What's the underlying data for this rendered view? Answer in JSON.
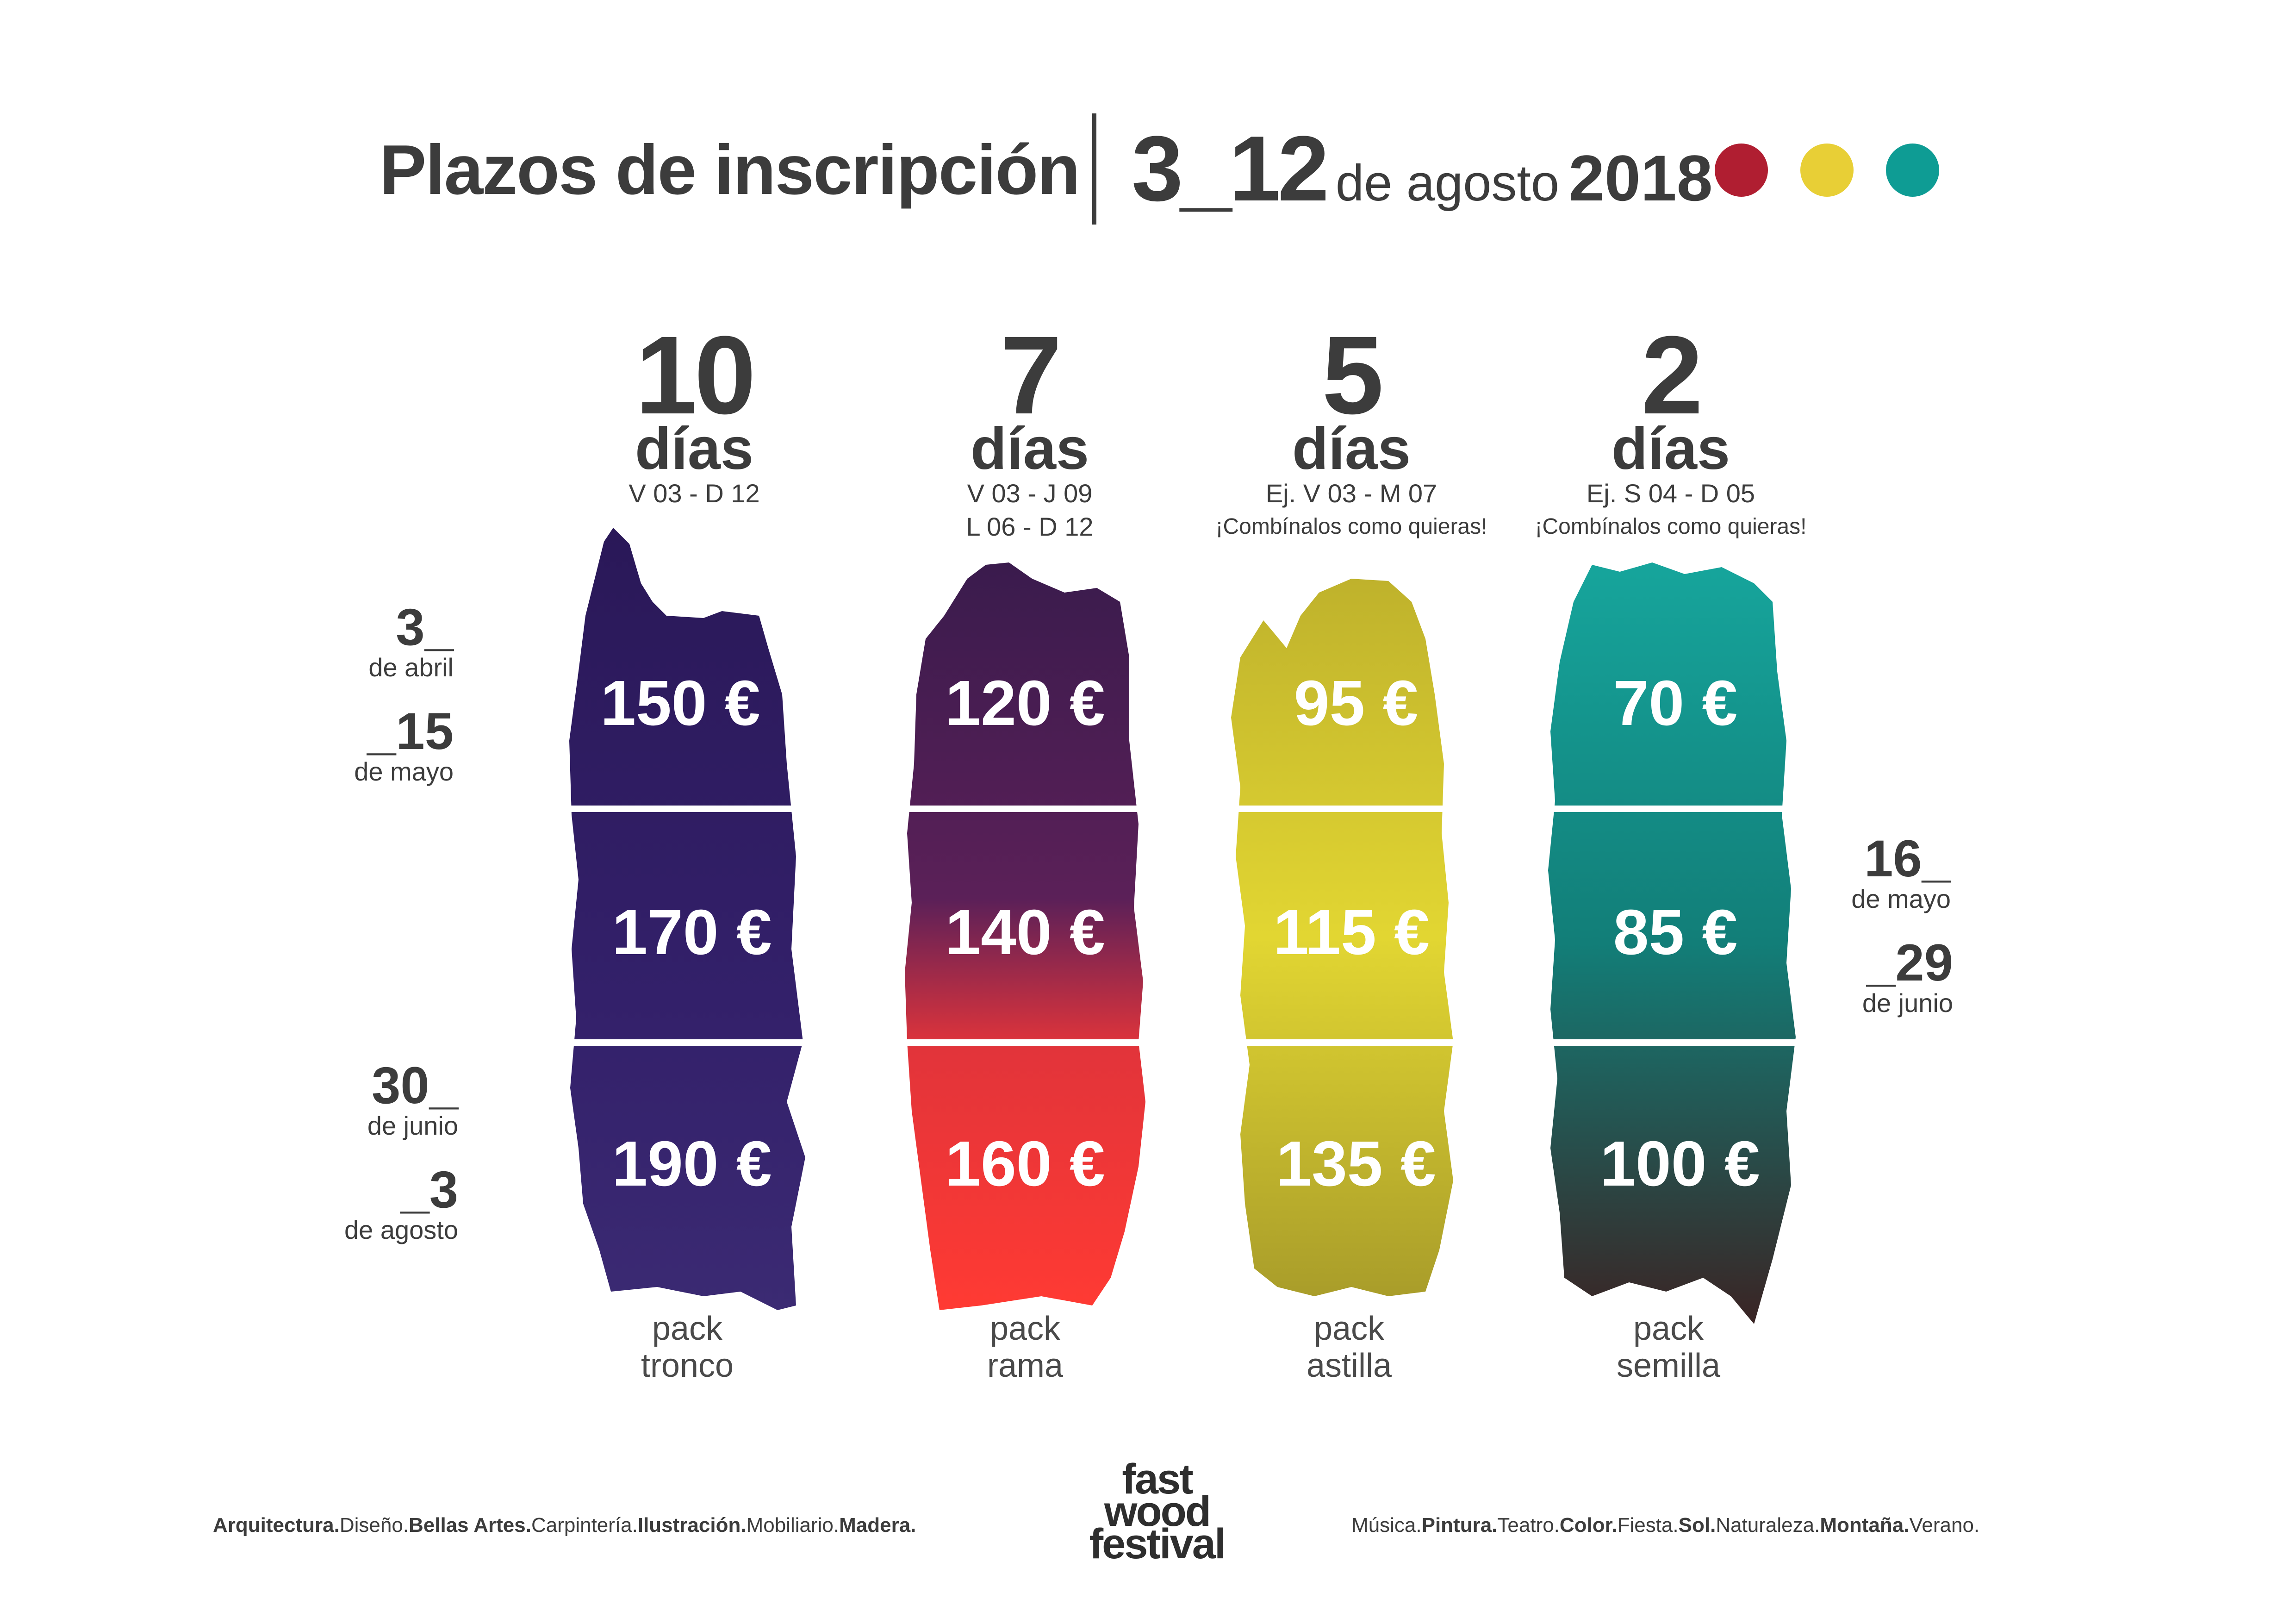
{
  "header": {
    "title": "Plazos de inscripción",
    "dates_big": "3_12",
    "dates_mid": "de agosto",
    "dates_year": "2018",
    "dots": [
      "#b01e31",
      "#e8cf36",
      "#0e9c94"
    ]
  },
  "columns": [
    {
      "num": "10",
      "dias": "días",
      "sub": "V 03 - D 12",
      "sub_b": "",
      "note": "",
      "prices": [
        "150 €",
        "170 €",
        "190 €"
      ],
      "pack_a": "pack",
      "pack_b": "tronco",
      "color": "#2f1a63"
    },
    {
      "num": "7",
      "dias": "días",
      "sub": "V 03 - J 09",
      "sub_b": "L 06 - D 12",
      "note": "",
      "prices": [
        "120 €",
        "140 €",
        "160 €"
      ],
      "pack_a": "pack",
      "pack_b": "rama",
      "color": "#e0343a"
    },
    {
      "num": "5",
      "dias": "días",
      "sub": "Ej. V 03 - M 07",
      "sub_b": "",
      "note": "¡Combínalos como quieras!",
      "prices": [
        "95 €",
        "115 €",
        "135 €"
      ],
      "pack_a": "pack",
      "pack_b": "astilla",
      "color": "#c9bd2e"
    },
    {
      "num": "2",
      "dias": "días",
      "sub": "Ej. S 04 - D 05",
      "sub_b": "",
      "note": "¡Combínalos como quieras!",
      "prices": [
        "70 €",
        "85 €",
        "100 €"
      ],
      "pack_a": "pack",
      "pack_b": "semilla",
      "color": "#129e96"
    }
  ],
  "periods": {
    "p1_start_n": "3_",
    "p1_start_m": "de abril",
    "p1_end_n": "_15",
    "p1_end_m": "de mayo",
    "p2_start_n": "16_",
    "p2_start_m": "de mayo",
    "p2_end_n": "_29",
    "p2_end_m": "de junio",
    "p3_start_n": "30_",
    "p3_start_m": "de junio",
    "p3_end_n": "_3",
    "p3_end_m": "de agosto"
  },
  "footer": {
    "left": [
      {
        "t": "Arquitectura.",
        "b": true
      },
      {
        "t": "Diseño.",
        "b": false
      },
      {
        "t": "Bellas Artes.",
        "b": true
      },
      {
        "t": "Carpintería.",
        "b": false
      },
      {
        "t": "Ilustración.",
        "b": true
      },
      {
        "t": "Mobiliario.",
        "b": false
      },
      {
        "t": "Madera.",
        "b": true
      }
    ],
    "right": [
      {
        "t": "Música.",
        "b": false
      },
      {
        "t": "Pintura.",
        "b": true
      },
      {
        "t": "Teatro.",
        "b": false
      },
      {
        "t": "Color.",
        "b": true
      },
      {
        "t": "Fiesta.",
        "b": false
      },
      {
        "t": "Sol.",
        "b": true
      },
      {
        "t": "Naturaleza.",
        "b": false
      },
      {
        "t": "Montaña.",
        "b": true
      },
      {
        "t": "Verano.",
        "b": false
      }
    ],
    "logo_1": "fast",
    "logo_2": "wood",
    "logo_3": "festival"
  }
}
